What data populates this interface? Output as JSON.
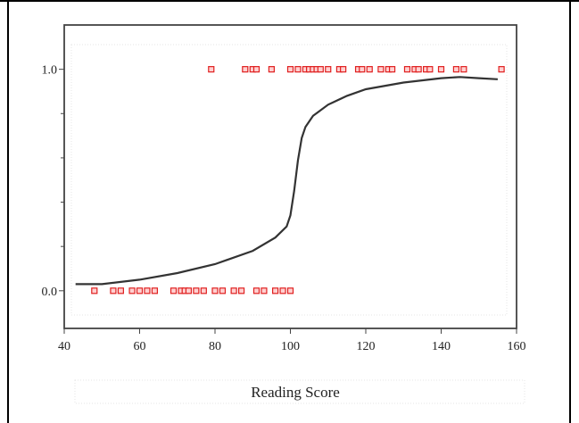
{
  "chart_data": {
    "type": "scatter",
    "title": "",
    "xlabel": "Reading Score",
    "ylabel": "",
    "xlim": [
      40,
      160
    ],
    "ylim": [
      -0.17,
      1.2
    ],
    "x_ticks": [
      40,
      60,
      80,
      100,
      120,
      140,
      160
    ],
    "x_tick_labels": [
      "40",
      "60",
      "80",
      "100",
      "120",
      "140",
      "160"
    ],
    "y_ticks": [
      0.0,
      1.0
    ],
    "y_tick_labels": [
      "0.0",
      "1.0"
    ],
    "y_minor_ticks": [
      0.2,
      0.4,
      0.6,
      0.8
    ],
    "grid": false,
    "series": [
      {
        "kind": "points",
        "color": "#e02020",
        "marker": "open-square",
        "points": [
          {
            "x": 48,
            "y": 0
          },
          {
            "x": 53,
            "y": 0
          },
          {
            "x": 55,
            "y": 0
          },
          {
            "x": 58,
            "y": 0
          },
          {
            "x": 60,
            "y": 0
          },
          {
            "x": 62,
            "y": 0
          },
          {
            "x": 64,
            "y": 0
          },
          {
            "x": 69,
            "y": 0
          },
          {
            "x": 71,
            "y": 0
          },
          {
            "x": 72,
            "y": 0
          },
          {
            "x": 73,
            "y": 0
          },
          {
            "x": 75,
            "y": 0
          },
          {
            "x": 77,
            "y": 0
          },
          {
            "x": 80,
            "y": 0
          },
          {
            "x": 82,
            "y": 0
          },
          {
            "x": 85,
            "y": 0
          },
          {
            "x": 87,
            "y": 0
          },
          {
            "x": 91,
            "y": 0
          },
          {
            "x": 93,
            "y": 0
          },
          {
            "x": 96,
            "y": 0
          },
          {
            "x": 98,
            "y": 0
          },
          {
            "x": 100,
            "y": 0
          },
          {
            "x": 79,
            "y": 1
          },
          {
            "x": 88,
            "y": 1
          },
          {
            "x": 90,
            "y": 1
          },
          {
            "x": 91,
            "y": 1
          },
          {
            "x": 95,
            "y": 1
          },
          {
            "x": 100,
            "y": 1
          },
          {
            "x": 102,
            "y": 1
          },
          {
            "x": 104,
            "y": 1
          },
          {
            "x": 105,
            "y": 1
          },
          {
            "x": 106,
            "y": 1
          },
          {
            "x": 107,
            "y": 1
          },
          {
            "x": 108,
            "y": 1
          },
          {
            "x": 110,
            "y": 1
          },
          {
            "x": 113,
            "y": 1
          },
          {
            "x": 114,
            "y": 1
          },
          {
            "x": 118,
            "y": 1
          },
          {
            "x": 119,
            "y": 1
          },
          {
            "x": 121,
            "y": 1
          },
          {
            "x": 124,
            "y": 1
          },
          {
            "x": 126,
            "y": 1
          },
          {
            "x": 127,
            "y": 1
          },
          {
            "x": 131,
            "y": 1
          },
          {
            "x": 133,
            "y": 1
          },
          {
            "x": 134,
            "y": 1
          },
          {
            "x": 136,
            "y": 1
          },
          {
            "x": 137,
            "y": 1
          },
          {
            "x": 140,
            "y": 1
          },
          {
            "x": 144,
            "y": 1
          },
          {
            "x": 146,
            "y": 1
          },
          {
            "x": 156,
            "y": 1
          }
        ]
      },
      {
        "kind": "curve",
        "color": "#333333",
        "points": [
          {
            "x": 43,
            "y": 0.03
          },
          {
            "x": 50,
            "y": 0.03
          },
          {
            "x": 60,
            "y": 0.05
          },
          {
            "x": 70,
            "y": 0.08
          },
          {
            "x": 80,
            "y": 0.12
          },
          {
            "x": 90,
            "y": 0.18
          },
          {
            "x": 96,
            "y": 0.24
          },
          {
            "x": 99,
            "y": 0.29
          },
          {
            "x": 100,
            "y": 0.34
          },
          {
            "x": 101,
            "y": 0.45
          },
          {
            "x": 102,
            "y": 0.59
          },
          {
            "x": 103,
            "y": 0.69
          },
          {
            "x": 104,
            "y": 0.74
          },
          {
            "x": 106,
            "y": 0.79
          },
          {
            "x": 110,
            "y": 0.84
          },
          {
            "x": 115,
            "y": 0.88
          },
          {
            "x": 120,
            "y": 0.91
          },
          {
            "x": 130,
            "y": 0.94
          },
          {
            "x": 140,
            "y": 0.96
          },
          {
            "x": 145,
            "y": 0.965
          },
          {
            "x": 150,
            "y": 0.96
          },
          {
            "x": 155,
            "y": 0.955
          }
        ]
      }
    ]
  }
}
